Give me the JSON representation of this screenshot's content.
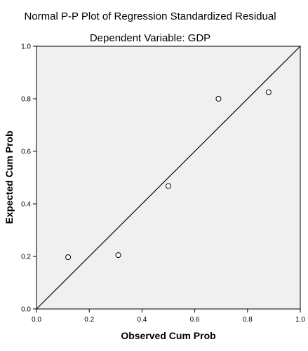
{
  "chart_data": {
    "type": "scatter",
    "title": "Normal P-P Plot of Regression Standardized Residual",
    "subtitle": "Dependent Variable: GDP",
    "xlabel": "Observed Cum Prob",
    "ylabel": "Expected Cum Prob",
    "xlim": [
      0.0,
      1.0
    ],
    "ylim": [
      0.0,
      1.0
    ],
    "x_ticks": [
      "0.0",
      "0.2",
      "0.4",
      "0.6",
      "0.8",
      "1.0"
    ],
    "y_ticks": [
      "0.0",
      "0.2",
      "0.4",
      "0.6",
      "0.8",
      "1.0"
    ],
    "reference_line": {
      "from": [
        0.0,
        0.0
      ],
      "to": [
        1.0,
        1.0
      ]
    },
    "points": [
      {
        "x": 0.12,
        "y": 0.197
      },
      {
        "x": 0.31,
        "y": 0.205
      },
      {
        "x": 0.5,
        "y": 0.468
      },
      {
        "x": 0.69,
        "y": 0.8
      },
      {
        "x": 0.88,
        "y": 0.825
      }
    ],
    "grid": false,
    "legend": "none",
    "colors": {
      "plot_background": "#f0f0f0",
      "frame": "#000000",
      "marker_edge": "#000000",
      "marker_fill": "#ffffff",
      "reference_line": "#000000"
    }
  }
}
